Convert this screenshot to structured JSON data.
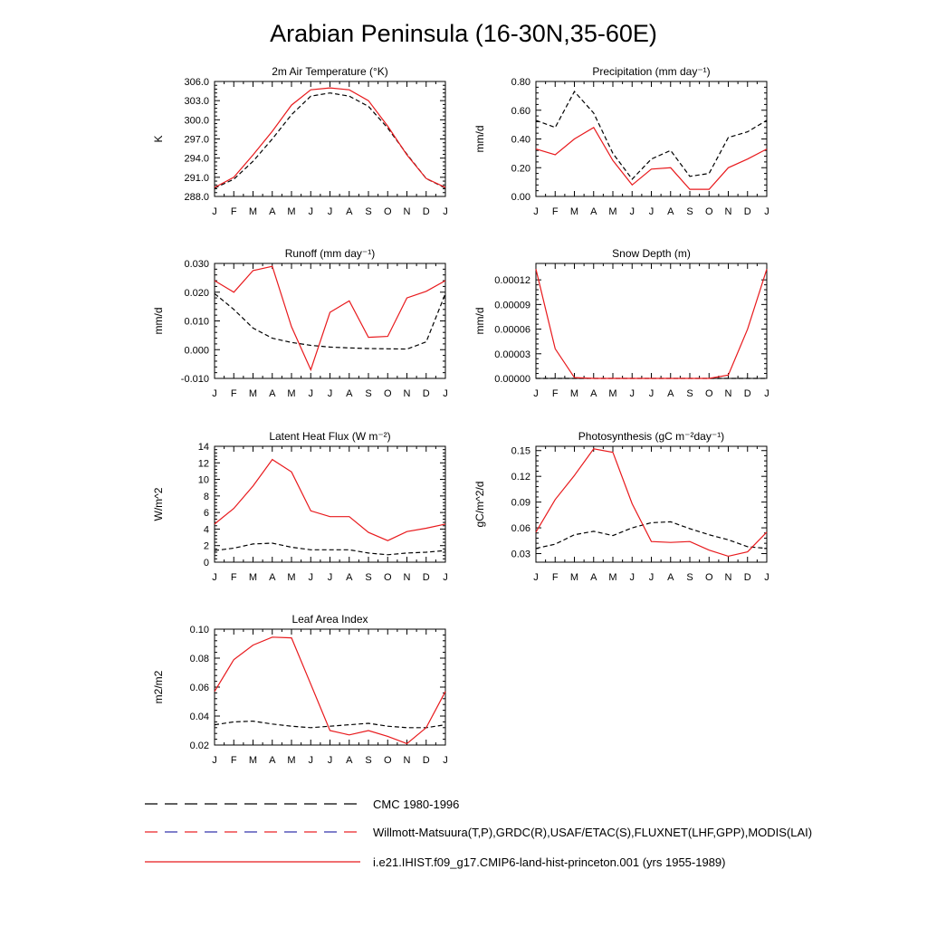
{
  "title": "Arabian Peninsula (16-30N,35-60E)",
  "months": [
    "J",
    "F",
    "M",
    "A",
    "M",
    "J",
    "J",
    "A",
    "S",
    "O",
    "N",
    "D",
    "J"
  ],
  "colors": {
    "model": "#e8191c",
    "obs": "#000000",
    "obs2": "#2a2aa8"
  },
  "legend": [
    {
      "label": "CMC 1980-1996",
      "style": "dashed-black"
    },
    {
      "label": "Willmott-Matsuura(T,P),GRDC(R),USAF/ETAC(S),FLUXNET(LHF,GPP),MODIS(LAI)",
      "style": "dashed-mixed"
    },
    {
      "label": "i.e21.IHIST.f09_g17.CMIP6-land-hist-princeton.001 (yrs 1955-1989)",
      "style": "solid-red"
    }
  ],
  "chart_data": [
    {
      "type": "line",
      "title": "2m Air Temperature (°K)",
      "ylabel": "K",
      "ylim": [
        288.0,
        306.0
      ],
      "yticks": [
        288.0,
        291.0,
        294.0,
        297.0,
        300.0,
        303.0,
        306.0
      ],
      "ytick_labels": [
        "288.0",
        "291.0",
        "294.0",
        "297.0",
        "300.0",
        "303.0",
        "306.0"
      ],
      "x": [
        "J",
        "F",
        "M",
        "A",
        "M",
        "J",
        "J",
        "A",
        "S",
        "O",
        "N",
        "D",
        "J"
      ],
      "series": [
        {
          "style": "dashed",
          "color": "#000000",
          "values": [
            289.3,
            290.7,
            293.5,
            297.0,
            300.8,
            303.7,
            304.2,
            303.7,
            302.1,
            298.7,
            294.6,
            290.8,
            289.3
          ]
        },
        {
          "style": "solid",
          "color": "#e8191c",
          "values": [
            289.4,
            291.0,
            294.5,
            298.2,
            302.3,
            304.7,
            305.0,
            304.7,
            303.0,
            299.0,
            294.5,
            290.8,
            289.4
          ]
        }
      ]
    },
    {
      "type": "line",
      "title": "Precipitation (mm day⁻¹)",
      "ylabel": "mm/d",
      "ylim": [
        0.0,
        0.8
      ],
      "yticks": [
        0.0,
        0.2,
        0.4,
        0.6,
        0.8
      ],
      "ytick_labels": [
        "0.00",
        "0.20",
        "0.40",
        "0.60",
        "0.80"
      ],
      "x": [
        "J",
        "F",
        "M",
        "A",
        "M",
        "J",
        "J",
        "A",
        "S",
        "O",
        "N",
        "D",
        "J"
      ],
      "series": [
        {
          "style": "dashed",
          "color": "#000000",
          "values": [
            0.53,
            0.48,
            0.73,
            0.58,
            0.3,
            0.12,
            0.26,
            0.32,
            0.14,
            0.16,
            0.41,
            0.45,
            0.53
          ]
        },
        {
          "style": "solid",
          "color": "#e8191c",
          "values": [
            0.33,
            0.29,
            0.4,
            0.48,
            0.25,
            0.08,
            0.19,
            0.2,
            0.05,
            0.05,
            0.2,
            0.26,
            0.33
          ]
        }
      ]
    },
    {
      "type": "line",
      "title": "Runoff (mm day⁻¹)",
      "ylabel": "mm/d",
      "ylim": [
        -0.01,
        0.03
      ],
      "yticks": [
        -0.01,
        0.0,
        0.01,
        0.02,
        0.03
      ],
      "ytick_labels": [
        "-0.010",
        "0.000",
        "0.010",
        "0.020",
        "0.030"
      ],
      "x": [
        "J",
        "F",
        "M",
        "A",
        "M",
        "J",
        "J",
        "A",
        "S",
        "O",
        "N",
        "D",
        "J"
      ],
      "series": [
        {
          "style": "dashed",
          "color": "#000000",
          "values": [
            0.0195,
            0.014,
            0.0075,
            0.004,
            0.0025,
            0.0015,
            0.0009,
            0.0006,
            0.0004,
            0.0003,
            0.0002,
            0.0027,
            0.0195
          ]
        },
        {
          "style": "solid",
          "color": "#e8191c",
          "values": [
            0.024,
            0.02,
            0.0275,
            0.029,
            0.008,
            -0.007,
            0.013,
            0.017,
            0.0043,
            0.0046,
            0.018,
            0.0203,
            0.024
          ]
        }
      ]
    },
    {
      "type": "line",
      "title": "Snow Depth (m)",
      "ylabel": "mm/d",
      "ylim": [
        0.0,
        0.00014
      ],
      "yticks": [
        0.0,
        3e-05,
        6e-05,
        9e-05,
        0.00012
      ],
      "ytick_labels": [
        "0.00000",
        "0.00003",
        "0.00006",
        "0.00009",
        "0.00012"
      ],
      "x": [
        "J",
        "F",
        "M",
        "A",
        "M",
        "J",
        "J",
        "A",
        "S",
        "O",
        "N",
        "D",
        "J"
      ],
      "series": [
        {
          "style": "dashed",
          "color": "#000000",
          "values": [
            0,
            0,
            0,
            0,
            0,
            0,
            0,
            0,
            0,
            0,
            0,
            0,
            0
          ]
        },
        {
          "style": "solid",
          "color": "#e8191c",
          "values": [
            0.000133,
            3.6e-05,
            1e-06,
            0,
            0,
            0,
            0,
            0,
            0,
            0,
            4e-06,
            6e-05,
            0.000133
          ]
        }
      ]
    },
    {
      "type": "line",
      "title": "Latent Heat Flux (W m⁻²)",
      "ylabel": "W/m^2",
      "ylim": [
        0,
        14
      ],
      "yticks": [
        0,
        2,
        4,
        6,
        8,
        10,
        12,
        14
      ],
      "ytick_labels": [
        "0",
        "2",
        "4",
        "6",
        "8",
        "10",
        "12",
        "14"
      ],
      "x": [
        "J",
        "F",
        "M",
        "A",
        "M",
        "J",
        "J",
        "A",
        "S",
        "O",
        "N",
        "D",
        "J"
      ],
      "series": [
        {
          "style": "dashed",
          "color": "#000000",
          "values": [
            1.4,
            1.7,
            2.2,
            2.3,
            1.8,
            1.5,
            1.5,
            1.5,
            1.1,
            0.9,
            1.1,
            1.2,
            1.4
          ]
        },
        {
          "style": "solid",
          "color": "#e8191c",
          "values": [
            4.6,
            6.5,
            9.2,
            12.4,
            10.9,
            6.2,
            5.5,
            5.5,
            3.6,
            2.6,
            3.7,
            4.1,
            4.6
          ]
        }
      ]
    },
    {
      "type": "line",
      "title": "Photosynthesis (gC m⁻²day⁻¹)",
      "ylabel": "gC/m^2/d",
      "ylim": [
        0.02,
        0.155
      ],
      "yticks": [
        0.03,
        0.06,
        0.09,
        0.12,
        0.15
      ],
      "ytick_labels": [
        "0.03",
        "0.06",
        "0.09",
        "0.12",
        "0.15"
      ],
      "x": [
        "J",
        "F",
        "M",
        "A",
        "M",
        "J",
        "J",
        "A",
        "S",
        "O",
        "N",
        "D",
        "J"
      ],
      "series": [
        {
          "style": "dashed",
          "color": "#000000",
          "values": [
            0.036,
            0.041,
            0.052,
            0.056,
            0.051,
            0.06,
            0.066,
            0.067,
            0.059,
            0.052,
            0.046,
            0.038,
            0.036
          ]
        },
        {
          "style": "solid",
          "color": "#e8191c",
          "values": [
            0.055,
            0.093,
            0.121,
            0.152,
            0.148,
            0.088,
            0.044,
            0.043,
            0.044,
            0.034,
            0.027,
            0.032,
            0.055
          ]
        }
      ]
    },
    {
      "type": "line",
      "title": "Leaf Area Index",
      "ylabel": "m2/m2",
      "ylim": [
        0.02,
        0.1
      ],
      "yticks": [
        0.02,
        0.04,
        0.06,
        0.08,
        0.1
      ],
      "ytick_labels": [
        "0.02",
        "0.04",
        "0.06",
        "0.08",
        "0.10"
      ],
      "x": [
        "J",
        "F",
        "M",
        "A",
        "M",
        "J",
        "J",
        "A",
        "S",
        "O",
        "N",
        "D",
        "J"
      ],
      "series": [
        {
          "style": "dashed",
          "color": "#000000",
          "values": [
            0.034,
            0.036,
            0.0365,
            0.0345,
            0.033,
            0.032,
            0.033,
            0.034,
            0.035,
            0.033,
            0.032,
            0.032,
            0.034
          ]
        },
        {
          "style": "solid",
          "color": "#e8191c",
          "values": [
            0.057,
            0.079,
            0.089,
            0.0945,
            0.094,
            0.062,
            0.03,
            0.027,
            0.03,
            0.026,
            0.021,
            0.032,
            0.057
          ]
        }
      ]
    }
  ]
}
